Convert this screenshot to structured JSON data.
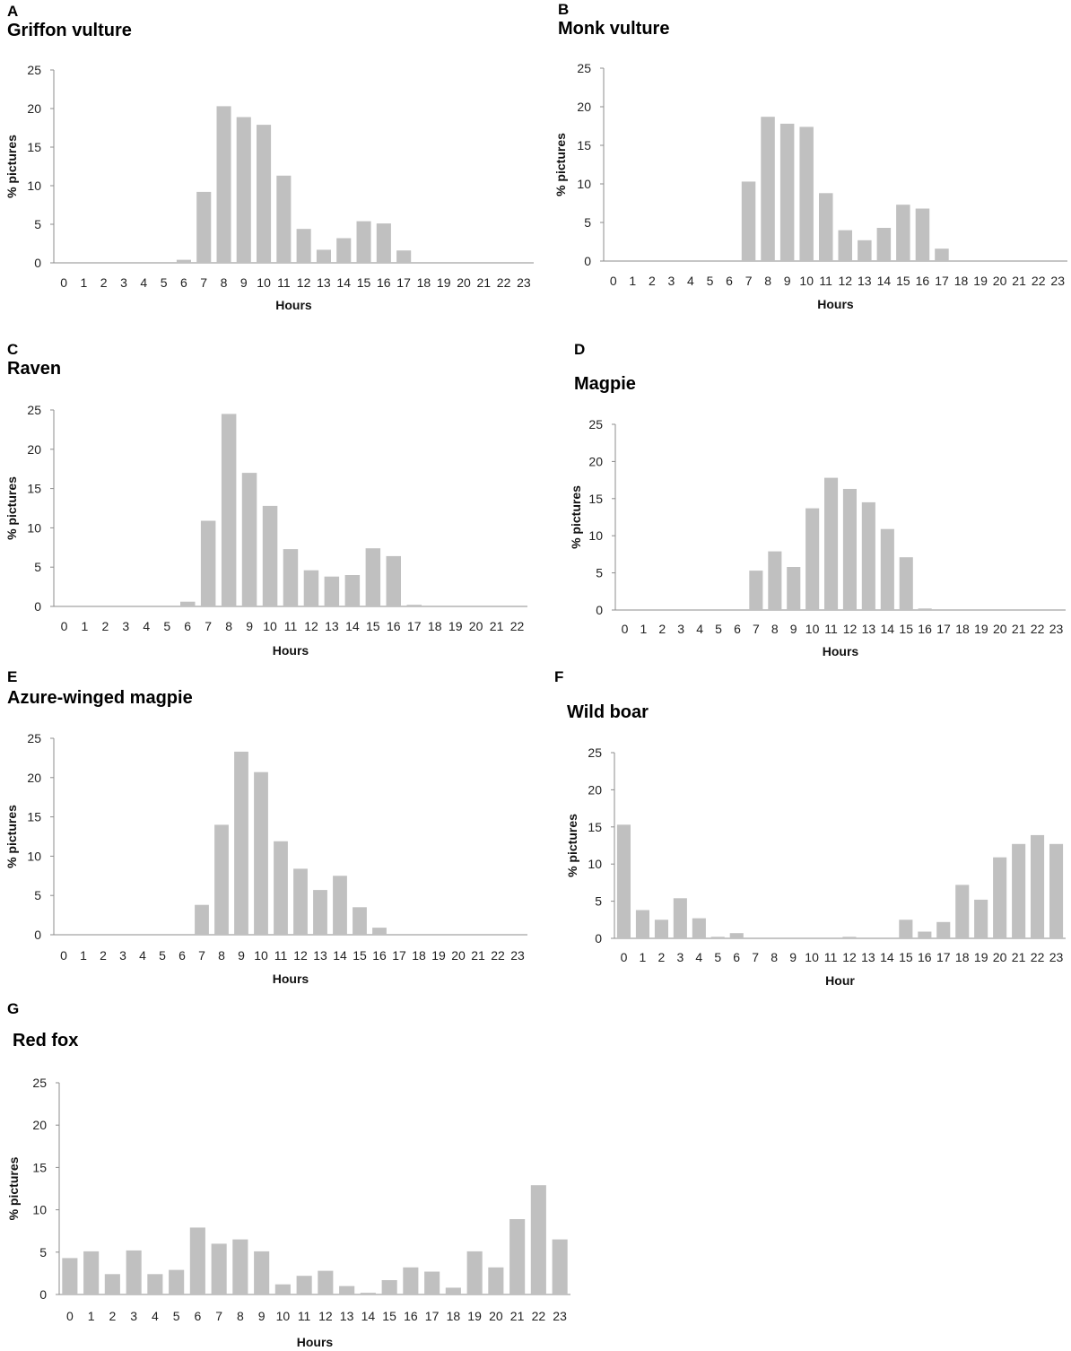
{
  "figure": {
    "colors": {
      "bar": "#c0c0c0",
      "axis": "#8c8c8c",
      "text": "#222222"
    }
  },
  "chart_data": [
    {
      "panel": "A",
      "title": "Griffon vulture",
      "type": "bar",
      "xlabel": "Hours",
      "ylabel": "% pictures",
      "ylim": [
        0,
        25
      ],
      "yticks": [
        0,
        5,
        10,
        15,
        20,
        25
      ],
      "categories": [
        "0",
        "1",
        "2",
        "3",
        "4",
        "5",
        "6",
        "7",
        "8",
        "9",
        "10",
        "11",
        "12",
        "13",
        "14",
        "15",
        "16",
        "17",
        "18",
        "19",
        "20",
        "21",
        "22",
        "23"
      ],
      "values": [
        0,
        0,
        0,
        0,
        0,
        0,
        0.4,
        9.2,
        20.3,
        18.9,
        17.9,
        11.3,
        4.4,
        1.7,
        3.2,
        5.4,
        5.1,
        1.6,
        0,
        0,
        0,
        0,
        0,
        0
      ]
    },
    {
      "panel": "B",
      "title": "Monk vulture",
      "type": "bar",
      "xlabel": "Hours",
      "ylabel": "% pictures",
      "ylim": [
        0,
        25
      ],
      "yticks": [
        0,
        5,
        10,
        15,
        20,
        25
      ],
      "categories": [
        "0",
        "1",
        "2",
        "3",
        "4",
        "5",
        "6",
        "7",
        "8",
        "9",
        "10",
        "11",
        "12",
        "13",
        "14",
        "15",
        "16",
        "17",
        "18",
        "19",
        "20",
        "21",
        "22",
        "23"
      ],
      "values": [
        0,
        0,
        0,
        0,
        0,
        0,
        0,
        10.3,
        18.7,
        17.8,
        17.4,
        8.8,
        4.0,
        2.7,
        4.3,
        7.3,
        6.8,
        1.6,
        0,
        0,
        0,
        0,
        0,
        0
      ]
    },
    {
      "panel": "C",
      "title": "Raven",
      "type": "bar",
      "xlabel": "Hours",
      "ylabel": "% pictures",
      "ylim": [
        0,
        25
      ],
      "yticks": [
        0,
        5,
        10,
        15,
        20,
        25
      ],
      "categories": [
        "0",
        "1",
        "2",
        "3",
        "4",
        "5",
        "6",
        "7",
        "8",
        "9",
        "10",
        "11",
        "12",
        "13",
        "14",
        "15",
        "16",
        "17",
        "18",
        "19",
        "20",
        "21",
        "22"
      ],
      "values": [
        0,
        0,
        0,
        0,
        0,
        0,
        0.6,
        10.9,
        24.5,
        17.0,
        12.8,
        7.3,
        4.6,
        3.8,
        4.0,
        7.4,
        6.4,
        0.2,
        0,
        0,
        0,
        0,
        0
      ]
    },
    {
      "panel": "D",
      "title": "Magpie",
      "type": "bar",
      "xlabel": "Hours",
      "ylabel": "% pictures",
      "ylim": [
        0,
        25
      ],
      "yticks": [
        0,
        5,
        10,
        15,
        20,
        25
      ],
      "categories": [
        "0",
        "1",
        "2",
        "3",
        "4",
        "5",
        "6",
        "7",
        "8",
        "9",
        "10",
        "11",
        "12",
        "13",
        "14",
        "15",
        "16",
        "17",
        "18",
        "19",
        "20",
        "21",
        "22",
        "23"
      ],
      "values": [
        0,
        0,
        0,
        0,
        0,
        0,
        0,
        5.3,
        7.9,
        5.8,
        13.7,
        17.8,
        16.3,
        14.5,
        10.9,
        7.1,
        0.2,
        0,
        0,
        0,
        0,
        0,
        0,
        0
      ]
    },
    {
      "panel": "E",
      "title": "Azure-winged magpie",
      "type": "bar",
      "xlabel": "Hours",
      "ylabel": "% pictures",
      "ylim": [
        0,
        25
      ],
      "yticks": [
        0,
        5,
        10,
        15,
        20,
        25
      ],
      "categories": [
        "0",
        "1",
        "2",
        "3",
        "4",
        "5",
        "6",
        "7",
        "8",
        "9",
        "10",
        "11",
        "12",
        "13",
        "14",
        "15",
        "16",
        "17",
        "18",
        "19",
        "20",
        "21",
        "22",
        "23"
      ],
      "values": [
        0,
        0,
        0,
        0,
        0,
        0,
        0,
        3.8,
        14.0,
        23.3,
        20.7,
        11.9,
        8.4,
        5.7,
        7.5,
        3.5,
        0.9,
        0,
        0,
        0,
        0,
        0,
        0,
        0
      ]
    },
    {
      "panel": "F",
      "title": "Wild boar",
      "type": "bar",
      "xlabel": "Hour",
      "ylabel": "% pictures",
      "ylim": [
        0,
        25
      ],
      "yticks": [
        0,
        5,
        10,
        15,
        20,
        25
      ],
      "categories": [
        "0",
        "1",
        "2",
        "3",
        "4",
        "5",
        "6",
        "7",
        "8",
        "9",
        "10",
        "11",
        "12",
        "13",
        "14",
        "15",
        "16",
        "17",
        "18",
        "19",
        "20",
        "21",
        "22",
        "23"
      ],
      "values": [
        15.3,
        3.8,
        2.5,
        5.4,
        2.7,
        0.2,
        0.7,
        0,
        0,
        0,
        0,
        0,
        0.2,
        0,
        0,
        2.5,
        0.9,
        2.2,
        7.2,
        5.2,
        10.9,
        12.7,
        13.9,
        12.7
      ]
    },
    {
      "panel": "G",
      "title": "Red fox",
      "type": "bar",
      "xlabel": "Hours",
      "ylabel": "% pictures",
      "ylim": [
        0,
        25
      ],
      "yticks": [
        0,
        5,
        10,
        15,
        20,
        25
      ],
      "categories": [
        "0",
        "1",
        "2",
        "3",
        "4",
        "5",
        "6",
        "7",
        "8",
        "9",
        "10",
        "11",
        "12",
        "13",
        "14",
        "15",
        "16",
        "17",
        "18",
        "19",
        "20",
        "21",
        "22",
        "23"
      ],
      "values": [
        4.3,
        5.1,
        2.4,
        5.2,
        2.4,
        2.9,
        7.9,
        6.0,
        6.5,
        5.1,
        1.2,
        2.2,
        2.8,
        1.0,
        0.2,
        1.7,
        3.2,
        2.7,
        0.8,
        5.1,
        3.2,
        8.9,
        12.9,
        6.5
      ]
    }
  ]
}
